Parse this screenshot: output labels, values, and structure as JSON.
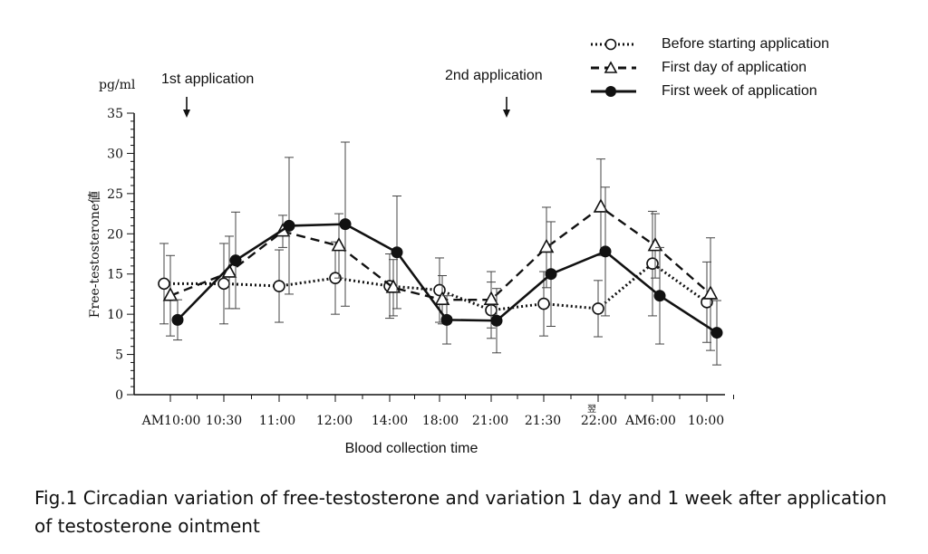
{
  "chart_data": {
    "type": "line",
    "ylabel": "Free-testosterone値",
    "unit": "pg/ml",
    "xlabel": "Blood collection time",
    "ylim": [
      0,
      35
    ],
    "yticks": [
      0,
      5,
      10,
      15,
      20,
      25,
      30,
      35
    ],
    "categories": [
      "AM10:00",
      "10:30",
      "11:00",
      "12:00",
      "14:00",
      "18:00",
      "21:00",
      "21:30",
      "22:00",
      "AM6:00",
      "10:00"
    ],
    "next_day_mark": "翌",
    "annotations": [
      {
        "text": "1st application",
        "category": "AM10:00"
      },
      {
        "text": "2nd application",
        "category": "21:00"
      }
    ],
    "series": [
      {
        "name": "Before starting application",
        "style": "dotted",
        "marker": "circle-open",
        "values": [
          13.8,
          13.8,
          13.5,
          14.5,
          13.5,
          13.0,
          10.5,
          11.3,
          10.7,
          16.3,
          11.5
        ],
        "errors": [
          5.0,
          5.0,
          4.5,
          4.5,
          4.0,
          4.0,
          3.5,
          4.0,
          3.5,
          6.5,
          5.0
        ]
      },
      {
        "name": "First day of application",
        "style": "dashed",
        "marker": "triangle-open",
        "values": [
          12.3,
          15.2,
          20.3,
          18.5,
          13.3,
          11.8,
          11.8,
          18.3,
          23.3,
          18.5,
          12.5
        ],
        "errors": [
          5.0,
          4.5,
          2.0,
          4.0,
          3.5,
          3.0,
          3.5,
          5.0,
          6.0,
          4.0,
          7.0
        ]
      },
      {
        "name": "First week of application",
        "style": "solid",
        "marker": "circle-filled",
        "values": [
          9.3,
          16.7,
          21.0,
          21.2,
          17.7,
          9.3,
          9.2,
          15.0,
          17.8,
          12.3,
          7.7
        ],
        "errors": [
          2.5,
          6.0,
          8.5,
          10.2,
          7.0,
          3.0,
          4.0,
          6.5,
          8.0,
          6.0,
          4.0
        ]
      }
    ]
  },
  "caption": "Fig.1 Circadian variation of free-testosterone and variation 1 day and 1 week after application of testosterone ointment"
}
